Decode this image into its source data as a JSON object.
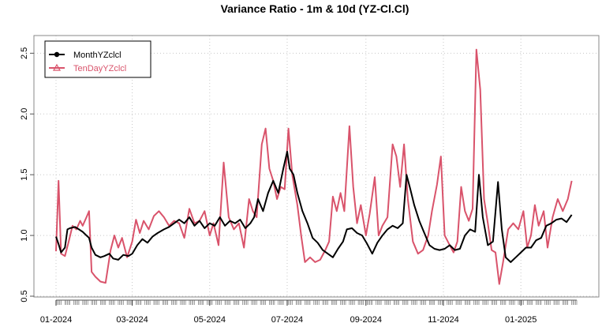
{
  "chart_data": {
    "type": "line",
    "title": "Variance Ratio - 1m & 10d (YZ-Cl.Cl)",
    "xlabel": "",
    "ylabel": "",
    "ylim": [
      0.5,
      2.6
    ],
    "yticks": [
      0.5,
      1.0,
      1.5,
      2.0,
      2.5
    ],
    "ytick_labels": [
      "0.5",
      "1.0",
      "1.5",
      "2.0",
      "2.5"
    ],
    "x_range": [
      "2024-01-01",
      "2025-02-14"
    ],
    "xticks": [
      "2024-01-01",
      "2024-03-01",
      "2024-05-01",
      "2024-07-01",
      "2024-09-01",
      "2024-11-01",
      "2025-01-01"
    ],
    "xtick_labels": [
      "01-2024",
      "03-2024",
      "05-2024",
      "07-2024",
      "09-2024",
      "11-2024",
      "01-2025"
    ],
    "grid": true,
    "legend": "top-left",
    "series": [
      {
        "name": "MonthYZclcl",
        "color": "#000000",
        "points": [
          [
            "2024-01-01",
            0.99
          ],
          [
            "2024-01-03",
            0.93
          ],
          [
            "2024-01-05",
            0.86
          ],
          [
            "2024-01-08",
            0.9
          ],
          [
            "2024-01-10",
            1.05
          ],
          [
            "2024-01-12",
            1.06
          ],
          [
            "2024-01-16",
            1.07
          ],
          [
            "2024-01-19",
            1.05
          ],
          [
            "2024-01-22",
            1.03
          ],
          [
            "2024-01-25",
            1.0
          ],
          [
            "2024-01-27",
            0.98
          ],
          [
            "2024-01-29",
            0.9
          ],
          [
            "2024-02-01",
            0.84
          ],
          [
            "2024-02-05",
            0.82
          ],
          [
            "2024-02-08",
            0.83
          ],
          [
            "2024-02-12",
            0.85
          ],
          [
            "2024-02-15",
            0.81
          ],
          [
            "2024-02-19",
            0.8
          ],
          [
            "2024-02-23",
            0.84
          ],
          [
            "2024-02-27",
            0.83
          ],
          [
            "2024-03-01",
            0.85
          ],
          [
            "2024-03-05",
            0.92
          ],
          [
            "2024-03-09",
            0.97
          ],
          [
            "2024-03-13",
            0.94
          ],
          [
            "2024-03-17",
            0.99
          ],
          [
            "2024-03-21",
            1.02
          ],
          [
            "2024-03-26",
            1.05
          ],
          [
            "2024-03-30",
            1.07
          ],
          [
            "2024-04-03",
            1.1
          ],
          [
            "2024-04-07",
            1.13
          ],
          [
            "2024-04-11",
            1.1
          ],
          [
            "2024-04-15",
            1.15
          ],
          [
            "2024-04-19",
            1.08
          ],
          [
            "2024-04-23",
            1.12
          ],
          [
            "2024-04-27",
            1.06
          ],
          [
            "2024-05-01",
            1.1
          ],
          [
            "2024-05-05",
            1.08
          ],
          [
            "2024-05-09",
            1.15
          ],
          [
            "2024-05-13",
            1.08
          ],
          [
            "2024-05-17",
            1.12
          ],
          [
            "2024-05-21",
            1.1
          ],
          [
            "2024-05-25",
            1.13
          ],
          [
            "2024-05-29",
            1.06
          ],
          [
            "2024-06-02",
            1.1
          ],
          [
            "2024-06-05",
            1.15
          ],
          [
            "2024-06-08",
            1.3
          ],
          [
            "2024-06-12",
            1.2
          ],
          [
            "2024-06-16",
            1.35
          ],
          [
            "2024-06-20",
            1.45
          ],
          [
            "2024-06-24",
            1.35
          ],
          [
            "2024-06-28",
            1.55
          ],
          [
            "2024-07-01",
            1.69
          ],
          [
            "2024-07-03",
            1.55
          ],
          [
            "2024-07-06",
            1.5
          ],
          [
            "2024-07-09",
            1.35
          ],
          [
            "2024-07-13",
            1.2
          ],
          [
            "2024-07-17",
            1.1
          ],
          [
            "2024-07-21",
            0.98
          ],
          [
            "2024-07-25",
            0.94
          ],
          [
            "2024-07-29",
            0.88
          ],
          [
            "2024-08-02",
            0.85
          ],
          [
            "2024-08-06",
            0.82
          ],
          [
            "2024-08-10",
            0.89
          ],
          [
            "2024-08-14",
            0.95
          ],
          [
            "2024-08-17",
            1.05
          ],
          [
            "2024-08-21",
            1.06
          ],
          [
            "2024-08-25",
            1.02
          ],
          [
            "2024-08-29",
            1.0
          ],
          [
            "2024-09-02",
            0.93
          ],
          [
            "2024-09-06",
            0.85
          ],
          [
            "2024-09-10",
            0.94
          ],
          [
            "2024-09-14",
            1.0
          ],
          [
            "2024-09-18",
            1.05
          ],
          [
            "2024-09-22",
            1.08
          ],
          [
            "2024-09-26",
            1.06
          ],
          [
            "2024-09-30",
            1.1
          ],
          [
            "2024-10-03",
            1.5
          ],
          [
            "2024-10-06",
            1.38
          ],
          [
            "2024-10-09",
            1.25
          ],
          [
            "2024-10-13",
            1.12
          ],
          [
            "2024-10-17",
            1.02
          ],
          [
            "2024-10-21",
            0.92
          ],
          [
            "2024-10-25",
            0.89
          ],
          [
            "2024-10-29",
            0.88
          ],
          [
            "2024-11-02",
            0.89
          ],
          [
            "2024-11-06",
            0.92
          ],
          [
            "2024-11-10",
            0.88
          ],
          [
            "2024-11-14",
            0.89
          ],
          [
            "2024-11-18",
            1.0
          ],
          [
            "2024-11-22",
            1.05
          ],
          [
            "2024-11-26",
            1.03
          ],
          [
            "2024-11-29",
            1.5
          ],
          [
            "2024-12-02",
            1.15
          ],
          [
            "2024-12-06",
            0.92
          ],
          [
            "2024-12-10",
            0.95
          ],
          [
            "2024-12-14",
            1.44
          ],
          [
            "2024-12-17",
            1.05
          ],
          [
            "2024-12-20",
            0.82
          ],
          [
            "2024-12-24",
            0.78
          ],
          [
            "2024-12-28",
            0.82
          ],
          [
            "2025-01-01",
            0.86
          ],
          [
            "2025-01-05",
            0.9
          ],
          [
            "2025-01-09",
            0.9
          ],
          [
            "2025-01-13",
            0.96
          ],
          [
            "2025-01-17",
            0.98
          ],
          [
            "2025-01-21",
            1.08
          ],
          [
            "2025-01-25",
            1.1
          ],
          [
            "2025-01-29",
            1.13
          ],
          [
            "2025-02-02",
            1.14
          ],
          [
            "2025-02-06",
            1.11
          ],
          [
            "2025-02-10",
            1.17
          ]
        ]
      },
      {
        "name": "TenDayYZclcl",
        "color": "#d9536b",
        "points": [
          [
            "2024-01-01",
            0.87
          ],
          [
            "2024-01-03",
            1.45
          ],
          [
            "2024-01-05",
            0.85
          ],
          [
            "2024-01-08",
            0.83
          ],
          [
            "2024-01-11",
            0.95
          ],
          [
            "2024-01-14",
            1.08
          ],
          [
            "2024-01-17",
            1.05
          ],
          [
            "2024-01-20",
            1.12
          ],
          [
            "2024-01-22",
            1.08
          ],
          [
            "2024-01-25",
            1.15
          ],
          [
            "2024-01-27",
            1.2
          ],
          [
            "2024-01-29",
            0.7
          ],
          [
            "2024-02-01",
            0.66
          ],
          [
            "2024-02-05",
            0.62
          ],
          [
            "2024-02-09",
            0.61
          ],
          [
            "2024-02-13",
            0.88
          ],
          [
            "2024-02-16",
            1.0
          ],
          [
            "2024-02-19",
            0.9
          ],
          [
            "2024-02-22",
            0.98
          ],
          [
            "2024-02-26",
            0.82
          ],
          [
            "2024-03-01",
            0.95
          ],
          [
            "2024-03-04",
            1.13
          ],
          [
            "2024-03-07",
            1.02
          ],
          [
            "2024-03-10",
            1.12
          ],
          [
            "2024-03-14",
            1.05
          ],
          [
            "2024-03-18",
            1.16
          ],
          [
            "2024-03-22",
            1.2
          ],
          [
            "2024-03-26",
            1.15
          ],
          [
            "2024-03-30",
            1.08
          ],
          [
            "2024-04-03",
            1.12
          ],
          [
            "2024-04-07",
            1.1
          ],
          [
            "2024-04-11",
            0.98
          ],
          [
            "2024-04-15",
            1.22
          ],
          [
            "2024-04-19",
            1.1
          ],
          [
            "2024-04-23",
            1.12
          ],
          [
            "2024-04-27",
            1.2
          ],
          [
            "2024-05-01",
            1.0
          ],
          [
            "2024-05-04",
            1.1
          ],
          [
            "2024-05-08",
            0.92
          ],
          [
            "2024-05-12",
            1.6
          ],
          [
            "2024-05-16",
            1.15
          ],
          [
            "2024-05-20",
            1.05
          ],
          [
            "2024-05-24",
            1.1
          ],
          [
            "2024-05-28",
            0.9
          ],
          [
            "2024-06-01",
            1.3
          ],
          [
            "2024-06-04",
            1.2
          ],
          [
            "2024-06-07",
            1.15
          ],
          [
            "2024-06-11",
            1.75
          ],
          [
            "2024-06-14",
            1.88
          ],
          [
            "2024-06-17",
            1.55
          ],
          [
            "2024-06-20",
            1.45
          ],
          [
            "2024-06-23",
            1.3
          ],
          [
            "2024-06-26",
            1.4
          ],
          [
            "2024-06-29",
            1.38
          ],
          [
            "2024-07-02",
            1.88
          ],
          [
            "2024-07-05",
            1.5
          ],
          [
            "2024-07-09",
            1.25
          ],
          [
            "2024-07-12",
            1.0
          ],
          [
            "2024-07-15",
            0.78
          ],
          [
            "2024-07-19",
            0.82
          ],
          [
            "2024-07-23",
            0.78
          ],
          [
            "2024-07-27",
            0.8
          ],
          [
            "2024-07-31",
            0.88
          ],
          [
            "2024-08-03",
            0.95
          ],
          [
            "2024-08-06",
            1.32
          ],
          [
            "2024-08-09",
            1.2
          ],
          [
            "2024-08-12",
            1.35
          ],
          [
            "2024-08-15",
            1.2
          ],
          [
            "2024-08-19",
            1.9
          ],
          [
            "2024-08-22",
            1.4
          ],
          [
            "2024-08-25",
            1.1
          ],
          [
            "2024-08-28",
            1.25
          ],
          [
            "2024-09-01",
            1.0
          ],
          [
            "2024-09-04",
            1.18
          ],
          [
            "2024-09-08",
            1.48
          ],
          [
            "2024-09-11",
            1.0
          ],
          [
            "2024-09-14",
            1.08
          ],
          [
            "2024-09-18",
            1.15
          ],
          [
            "2024-09-22",
            1.75
          ],
          [
            "2024-09-25",
            1.65
          ],
          [
            "2024-09-28",
            1.4
          ],
          [
            "2024-10-01",
            1.75
          ],
          [
            "2024-10-04",
            1.3
          ],
          [
            "2024-10-08",
            0.95
          ],
          [
            "2024-10-12",
            0.85
          ],
          [
            "2024-10-16",
            0.88
          ],
          [
            "2024-10-20",
            1.0
          ],
          [
            "2024-10-23",
            1.2
          ],
          [
            "2024-10-27",
            1.42
          ],
          [
            "2024-10-30",
            1.65
          ],
          [
            "2024-11-02",
            1.0
          ],
          [
            "2024-11-06",
            0.92
          ],
          [
            "2024-11-09",
            0.86
          ],
          [
            "2024-11-12",
            0.95
          ],
          [
            "2024-11-15",
            1.4
          ],
          [
            "2024-11-18",
            1.2
          ],
          [
            "2024-11-21",
            1.12
          ],
          [
            "2024-11-24",
            1.22
          ],
          [
            "2024-11-27",
            2.53
          ],
          [
            "2024-11-30",
            2.2
          ],
          [
            "2024-12-03",
            1.3
          ],
          [
            "2024-12-06",
            1.1
          ],
          [
            "2024-12-09",
            0.88
          ],
          [
            "2024-12-12",
            0.86
          ],
          [
            "2024-12-15",
            0.6
          ],
          [
            "2024-12-18",
            0.78
          ],
          [
            "2024-12-22",
            1.05
          ],
          [
            "2024-12-26",
            1.1
          ],
          [
            "2024-12-30",
            1.05
          ],
          [
            "2025-01-03",
            1.2
          ],
          [
            "2025-01-06",
            0.9
          ],
          [
            "2025-01-09",
            1.0
          ],
          [
            "2025-01-12",
            1.25
          ],
          [
            "2025-01-15",
            1.08
          ],
          [
            "2025-01-19",
            1.2
          ],
          [
            "2025-01-22",
            0.9
          ],
          [
            "2025-01-26",
            1.15
          ],
          [
            "2025-01-30",
            1.3
          ],
          [
            "2025-02-03",
            1.2
          ],
          [
            "2025-02-07",
            1.3
          ],
          [
            "2025-02-10",
            1.45
          ]
        ]
      }
    ]
  }
}
